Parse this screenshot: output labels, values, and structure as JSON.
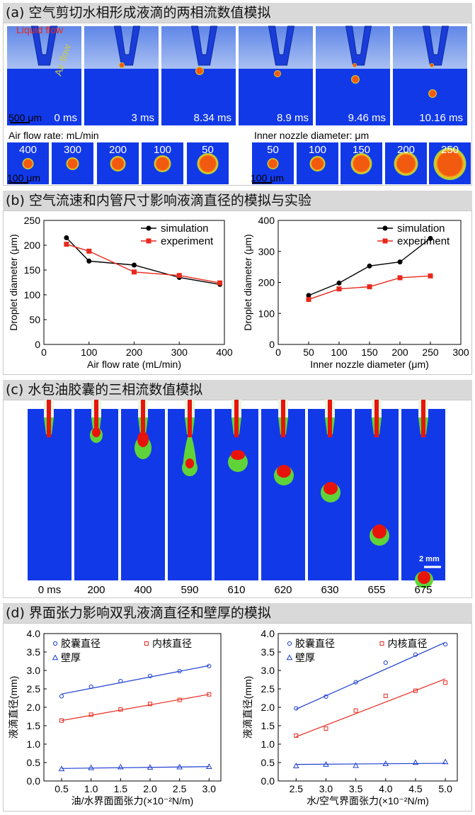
{
  "panel_a": {
    "title": "(a) 空气剪切水相形成液滴的两相流数值模拟",
    "liquid_label": "Liquid flow",
    "air_label": "Air flow",
    "scale_main": "500 μm",
    "times": [
      "0 ms",
      "3 ms",
      "8.34 ms",
      "8.9 ms",
      "9.46 ms",
      "10.16 ms"
    ],
    "air_rate_title": "Air flow rate: mL/min",
    "air_rates": [
      "400",
      "300",
      "200",
      "100",
      "50"
    ],
    "nozzle_title": "Inner nozzle diameter: μm",
    "nozzle_sizes": [
      "50",
      "100",
      "150",
      "200",
      "250"
    ],
    "scale_small_1": "100 μm",
    "scale_small_2": "100 μm"
  },
  "panel_b": {
    "title": "(b) 空气流速和内管尺寸影响液滴直径的模拟与实验"
  },
  "panel_c": {
    "title": "(c) 水包油胶囊的三相流数值模拟",
    "times": [
      "0 ms",
      "200",
      "400",
      "590",
      "610",
      "620",
      "630",
      "655",
      "675"
    ],
    "scale": "2 mm"
  },
  "panel_d": {
    "title": "(d) 界面张力影响双乳液滴直径和壁厚的模拟"
  },
  "chart_data": [
    {
      "type": "line",
      "xlabel": "Air flow rate (mL/min)",
      "ylabel": "Droplet diameter (μm)",
      "xlim": [
        0,
        400
      ],
      "ylim": [
        0,
        250
      ],
      "xticks": [
        "0",
        "100",
        "200",
        "300",
        "400"
      ],
      "yticks": [
        "0",
        "50",
        "100",
        "150",
        "200",
        "250"
      ],
      "series": [
        {
          "name": "simulation",
          "color": "#000000",
          "marker": "circle",
          "x": [
            50,
            100,
            200,
            300,
            390
          ],
          "y": [
            215,
            168,
            160,
            135,
            121
          ]
        },
        {
          "name": "experiment",
          "color": "#e8291c",
          "marker": "square",
          "x": [
            50,
            100,
            200,
            300,
            390
          ],
          "y": [
            202,
            188,
            146,
            139,
            124
          ]
        }
      ]
    },
    {
      "type": "line",
      "xlabel": "Inner nozzle diameter (μm)",
      "ylabel": "Droplet diameter (μm)",
      "xlim": [
        0,
        300
      ],
      "ylim": [
        0,
        400
      ],
      "xticks": [
        "0",
        "50",
        "100",
        "150",
        "200",
        "250",
        "300"
      ],
      "yticks": [
        "0",
        "100",
        "200",
        "300",
        "400"
      ],
      "series": [
        {
          "name": "simulation",
          "color": "#000000",
          "marker": "circle",
          "x": [
            50,
            100,
            150,
            200,
            250
          ],
          "y": [
            158,
            198,
            253,
            266,
            342
          ]
        },
        {
          "name": "experiment",
          "color": "#e8291c",
          "marker": "square",
          "x": [
            50,
            100,
            150,
            200,
            250
          ],
          "y": [
            145,
            179,
            186,
            215,
            221
          ]
        }
      ]
    },
    {
      "type": "scatter",
      "xlabel": "油/水界面面张力(×10⁻²N/m)",
      "ylabel": "液滴直径(mm)",
      "xlim": [
        0.2,
        3.2
      ],
      "ylim": [
        0,
        4
      ],
      "xticks": [
        "0.5",
        "1.0",
        "1.5",
        "2.0",
        "2.5",
        "3.0"
      ],
      "yticks": [
        "0.0",
        "0.5",
        "1.0",
        "1.5",
        "2.0",
        "2.5",
        "3.0",
        "3.5",
        "4.0"
      ],
      "series": [
        {
          "name": "胶囊直径",
          "color": "#1d3fd0",
          "marker": "circle",
          "x": [
            0.5,
            1.0,
            1.5,
            2.0,
            2.5,
            3.0
          ],
          "y": [
            2.3,
            2.56,
            2.71,
            2.85,
            2.98,
            3.12
          ],
          "fit": [
            2.36,
            3.13
          ]
        },
        {
          "name": "内核直径",
          "color": "#e8291c",
          "marker": "square",
          "x": [
            0.5,
            1.0,
            1.5,
            2.0,
            2.5,
            3.0
          ],
          "y": [
            1.64,
            1.8,
            1.94,
            2.09,
            2.2,
            2.35
          ],
          "fit": [
            1.64,
            2.35
          ]
        },
        {
          "name": "壁厚",
          "color": "#1d3fd0",
          "marker": "triangle",
          "x": [
            0.5,
            1.0,
            1.5,
            2.0,
            2.5,
            3.0
          ],
          "y": [
            0.33,
            0.36,
            0.38,
            0.37,
            0.38,
            0.39
          ],
          "fit": [
            0.34,
            0.39
          ]
        }
      ]
    },
    {
      "type": "scatter",
      "xlabel": "水/空气界面张力(×10⁻²N/m)",
      "ylabel": "液滴直径(mm)",
      "xlim": [
        2.2,
        5.2
      ],
      "ylim": [
        0,
        4
      ],
      "xticks": [
        "2.5",
        "3.0",
        "3.5",
        "4.0",
        "4.5",
        "5.0"
      ],
      "yticks": [
        "0.0",
        "0.5",
        "1.0",
        "1.5",
        "2.0",
        "2.5",
        "3.0",
        "3.5",
        "4.0"
      ],
      "series": [
        {
          "name": "胶囊直径",
          "color": "#1d3fd0",
          "marker": "circle",
          "x": [
            2.5,
            3.0,
            3.5,
            4.0,
            4.5,
            5.0
          ],
          "y": [
            1.97,
            2.29,
            2.68,
            3.21,
            3.43,
            3.71
          ],
          "fit": [
            1.95,
            3.76
          ]
        },
        {
          "name": "内核直径",
          "color": "#e8291c",
          "marker": "square",
          "x": [
            2.5,
            3.0,
            3.5,
            4.0,
            4.5,
            5.0
          ],
          "y": [
            1.23,
            1.42,
            1.91,
            2.31,
            2.45,
            2.67
          ],
          "fit": [
            1.2,
            2.77
          ]
        },
        {
          "name": "壁厚",
          "color": "#1d3fd0",
          "marker": "triangle",
          "x": [
            2.5,
            3.0,
            3.5,
            4.0,
            4.5,
            5.0
          ],
          "y": [
            0.41,
            0.45,
            0.42,
            0.47,
            0.5,
            0.52
          ],
          "fit": [
            0.45,
            0.48
          ]
        }
      ]
    }
  ]
}
